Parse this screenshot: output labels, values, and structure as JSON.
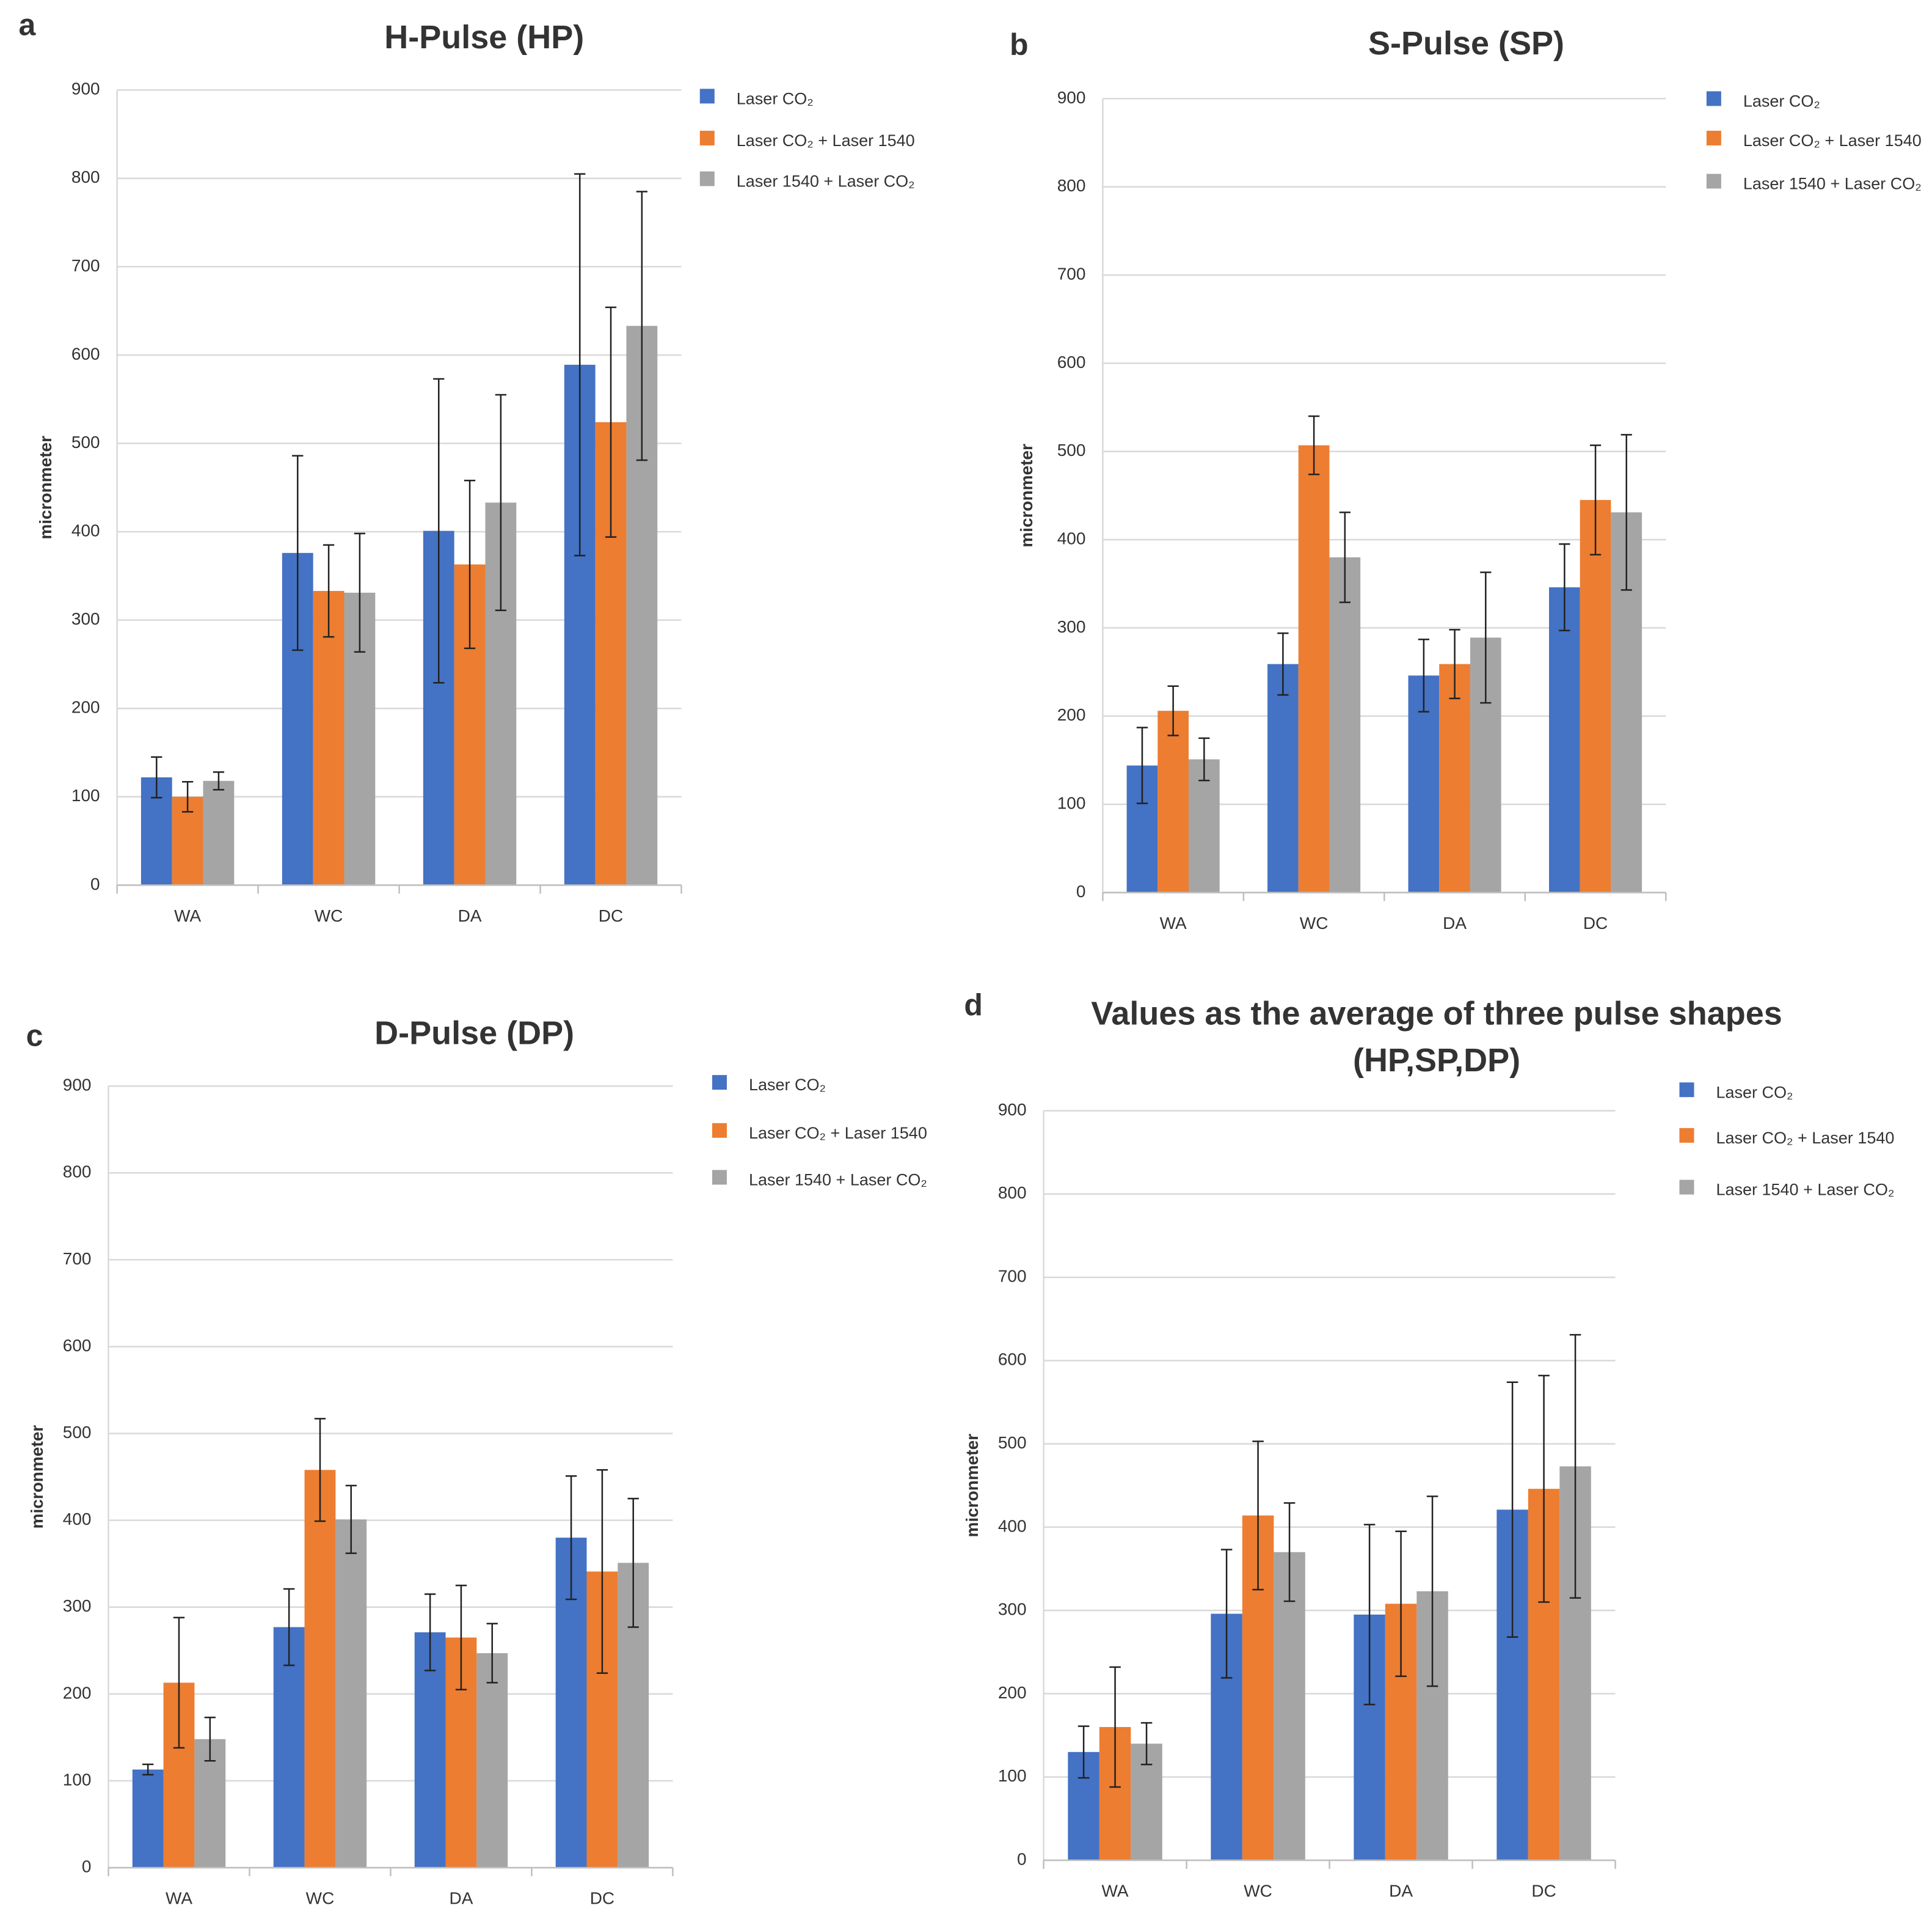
{
  "chart_data": [
    {
      "type": "bar",
      "label": "a",
      "title": "H-Pulse (HP)",
      "y_label": "micronmeter",
      "categories": [
        "WA",
        "WC",
        "DA",
        "DC"
      ],
      "ylim": [
        0,
        900
      ],
      "yticks": [
        0,
        100,
        200,
        300,
        400,
        500,
        600,
        700,
        800,
        900
      ],
      "grid": true,
      "series": [
        {
          "name": "Laser CO₂",
          "color": "#4472c4",
          "values": [
            122,
            376,
            401,
            589
          ],
          "errors": [
            23,
            110,
            172,
            216
          ]
        },
        {
          "name": "Laser CO₂ + Laser 1540",
          "color": "#ed7d31",
          "values": [
            100,
            333,
            363,
            524
          ],
          "errors": [
            17,
            52,
            95,
            130
          ]
        },
        {
          "name": "Laser 1540 + Laser CO₂",
          "color": "#a5a5a5",
          "values": [
            118,
            331,
            433,
            633
          ],
          "errors": [
            10,
            67,
            122,
            152
          ]
        }
      ]
    },
    {
      "type": "bar",
      "label": "b",
      "title": "S-Pulse (SP)",
      "y_label": "micronmeter",
      "categories": [
        "WA",
        "WC",
        "DA",
        "DC"
      ],
      "ylim": [
        0,
        900
      ],
      "yticks": [
        0,
        100,
        200,
        300,
        400,
        500,
        600,
        700,
        800,
        900
      ],
      "grid": true,
      "series": [
        {
          "name": "Laser CO₂",
          "color": "#4472c4",
          "values": [
            144,
            259,
            246,
            346
          ],
          "errors": [
            43,
            35,
            41,
            49
          ]
        },
        {
          "name": "Laser CO₂ + Laser 1540",
          "color": "#ed7d31",
          "values": [
            206,
            507,
            259,
            445
          ],
          "errors": [
            28,
            33,
            39,
            62
          ]
        },
        {
          "name": "Laser 1540 + Laser CO₂",
          "color": "#a5a5a5",
          "values": [
            151,
            380,
            289,
            431
          ],
          "errors": [
            24,
            51,
            74,
            88
          ]
        }
      ]
    },
    {
      "type": "bar",
      "label": "c",
      "title": "D-Pulse (DP)",
      "y_label": "micronmeter",
      "categories": [
        "WA",
        "WC",
        "DA",
        "DC"
      ],
      "ylim": [
        0,
        900
      ],
      "yticks": [
        0,
        100,
        200,
        300,
        400,
        500,
        600,
        700,
        800,
        900
      ],
      "grid": true,
      "series": [
        {
          "name": "Laser CO₂",
          "color": "#4472c4",
          "values": [
            113,
            277,
            271,
            380
          ],
          "errors": [
            6,
            44,
            44,
            71
          ]
        },
        {
          "name": "Laser CO₂ + Laser 1540",
          "color": "#ed7d31",
          "values": [
            213,
            458,
            265,
            341
          ],
          "errors": [
            75,
            59,
            60,
            117
          ]
        },
        {
          "name": "Laser 1540 + Laser CO₂",
          "color": "#a5a5a5",
          "values": [
            148,
            401,
            247,
            351
          ],
          "errors": [
            25,
            39,
            34,
            74
          ]
        }
      ]
    },
    {
      "type": "bar",
      "label": "d",
      "title": [
        "Values as the average of three pulse shapes",
        "(HP,SP,DP)"
      ],
      "y_label": "micronmeter",
      "categories": [
        "WA",
        "WC",
        "DA",
        "DC"
      ],
      "ylim": [
        0,
        900
      ],
      "yticks": [
        0,
        100,
        200,
        300,
        400,
        500,
        600,
        700,
        800,
        900
      ],
      "grid": true,
      "series": [
        {
          "name": "Laser CO₂",
          "color": "#4472c4",
          "values": [
            130,
            296,
            295,
            421
          ],
          "errors": [
            31,
            77,
            108,
            153
          ]
        },
        {
          "name": "Laser CO₂ + Laser 1540",
          "color": "#ed7d31",
          "values": [
            160,
            414,
            308,
            446
          ],
          "errors": [
            72,
            89,
            87,
            136
          ]
        },
        {
          "name": "Laser 1540 + Laser CO₂",
          "color": "#a5a5a5",
          "values": [
            140,
            370,
            323,
            473
          ],
          "errors": [
            25,
            59,
            114,
            158
          ]
        }
      ]
    }
  ]
}
